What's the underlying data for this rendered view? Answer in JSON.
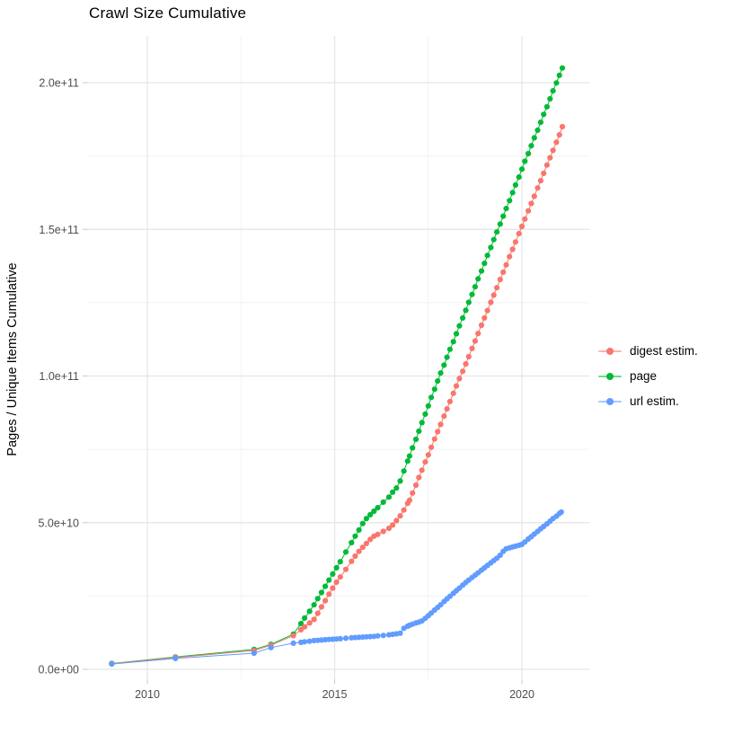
{
  "chart_data": {
    "type": "line",
    "marker": "point",
    "title": "Crawl Size Cumulative",
    "xlabel": "",
    "ylabel": "Pages / Unique Items Cumulative",
    "note": "series values are cumulative counts; values_e9 are in units of 1e9 (billions)",
    "grid": true,
    "legend_position": "right",
    "background": "#ffffff",
    "x_axis": {
      "range": [
        2008.4,
        2021.8
      ],
      "major_ticks": [
        2010,
        2015,
        2020
      ],
      "tick_labels": [
        "2010",
        "2015",
        "2020"
      ],
      "minor_ticks": [
        2012.5,
        2017.5
      ]
    },
    "y_axis": {
      "range_e9": [
        0,
        214
      ],
      "major_ticks_e9": [
        0,
        50,
        100,
        150,
        200
      ],
      "tick_labels": [
        "0.0e+00",
        "5.0e+10",
        "1.0e+11",
        "1.5e+11",
        "2.0e+11"
      ],
      "minor_ticks_e9": [
        25,
        75,
        125,
        175
      ]
    },
    "draw_order": [
      "page",
      "digest estim.",
      "url estim."
    ],
    "series": [
      {
        "name": "digest estim.",
        "color": "#F8766D",
        "x": [
          2009.05,
          2010.75,
          2012.85,
          2013.3,
          2013.9,
          2014.1,
          2014.2,
          2014.33,
          2014.45,
          2014.55,
          2014.65,
          2014.75,
          2014.85,
          2014.95,
          2015.05,
          2015.15,
          2015.3,
          2015.45,
          2015.55,
          2015.65,
          2015.75,
          2015.85,
          2015.95,
          2016.05,
          2016.15,
          2016.3,
          2016.45,
          2016.55,
          2016.65,
          2016.75,
          2016.85,
          2016.95,
          2017.0,
          2017.08,
          2017.17,
          2017.25,
          2017.33,
          2017.42,
          2017.5,
          2017.58,
          2017.67,
          2017.75,
          2017.83,
          2017.92,
          2018.0,
          2018.08,
          2018.17,
          2018.25,
          2018.33,
          2018.42,
          2018.5,
          2018.58,
          2018.67,
          2018.75,
          2018.83,
          2018.92,
          2019.0,
          2019.08,
          2019.17,
          2019.25,
          2019.33,
          2019.42,
          2019.5,
          2019.58,
          2019.67,
          2019.75,
          2019.83,
          2019.92,
          2020.0,
          2020.08,
          2020.17,
          2020.25,
          2020.33,
          2020.42,
          2020.5,
          2020.58,
          2020.67,
          2020.75,
          2020.83,
          2020.92,
          2021.0,
          2021.08
        ],
        "values_e9": [
          1.9,
          4.0,
          6.4,
          8.2,
          11.5,
          13.5,
          14.5,
          15.8,
          17.0,
          19.1,
          21.3,
          23.4,
          25.6,
          27.7,
          29.7,
          31.5,
          34.1,
          36.8,
          38.6,
          40.2,
          41.6,
          42.9,
          44.3,
          45.4,
          46.0,
          47.0,
          48.1,
          49.2,
          50.7,
          52.3,
          54.3,
          56.6,
          57.6,
          60.1,
          62.8,
          65.4,
          67.9,
          70.7,
          73.1,
          75.7,
          78.5,
          81.0,
          83.5,
          86.3,
          88.8,
          91.3,
          94.1,
          96.6,
          99.1,
          101.6,
          104.1,
          106.6,
          109.4,
          111.9,
          114.5,
          117.3,
          119.8,
          122.3,
          125.1,
          127.6,
          130.1,
          132.9,
          135.4,
          137.9,
          140.7,
          143.2,
          145.7,
          148.5,
          151.0,
          153.5,
          156.3,
          158.8,
          161.3,
          164.1,
          166.6,
          169.1,
          171.9,
          174.4,
          176.9,
          179.7,
          182.2,
          185.0
        ]
      },
      {
        "name": "page",
        "color": "#00BA38",
        "x": [
          2009.05,
          2010.75,
          2012.85,
          2013.3,
          2013.9,
          2014.1,
          2014.2,
          2014.33,
          2014.45,
          2014.55,
          2014.65,
          2014.75,
          2014.85,
          2014.95,
          2015.05,
          2015.15,
          2015.3,
          2015.45,
          2015.55,
          2015.65,
          2015.75,
          2015.85,
          2015.95,
          2016.05,
          2016.15,
          2016.3,
          2016.45,
          2016.55,
          2016.65,
          2016.75,
          2016.85,
          2016.95,
          2017.0,
          2017.08,
          2017.17,
          2017.25,
          2017.33,
          2017.42,
          2017.5,
          2017.58,
          2017.67,
          2017.75,
          2017.83,
          2017.92,
          2018.0,
          2018.08,
          2018.17,
          2018.25,
          2018.33,
          2018.42,
          2018.5,
          2018.58,
          2018.67,
          2018.75,
          2018.83,
          2018.92,
          2019.0,
          2019.08,
          2019.17,
          2019.25,
          2019.33,
          2019.42,
          2019.5,
          2019.58,
          2019.67,
          2019.75,
          2019.83,
          2019.92,
          2020.0,
          2020.08,
          2020.17,
          2020.25,
          2020.33,
          2020.42,
          2020.5,
          2020.58,
          2020.67,
          2020.75,
          2020.83,
          2020.92,
          2021.0,
          2021.08
        ],
        "values_e9": [
          2.0,
          4.2,
          6.8,
          8.5,
          12.0,
          15.6,
          17.5,
          19.8,
          22.0,
          24.1,
          26.2,
          28.3,
          30.4,
          32.5,
          34.6,
          36.7,
          40.0,
          43.2,
          45.4,
          47.5,
          49.7,
          51.4,
          52.7,
          53.9,
          55.1,
          57.0,
          58.7,
          60.4,
          61.8,
          64.2,
          67.6,
          71.0,
          72.7,
          75.5,
          78.4,
          81.2,
          84.1,
          87.0,
          89.8,
          92.7,
          95.5,
          98.3,
          101.0,
          103.7,
          106.4,
          109.1,
          111.7,
          114.4,
          117.1,
          119.8,
          122.4,
          125.1,
          127.8,
          130.4,
          133.1,
          135.8,
          138.4,
          141.1,
          143.8,
          146.5,
          149.1,
          151.8,
          154.5,
          157.1,
          159.8,
          162.5,
          165.1,
          167.8,
          170.5,
          173.2,
          175.8,
          178.5,
          181.2,
          183.8,
          186.5,
          189.2,
          191.8,
          194.5,
          197.2,
          199.9,
          202.5,
          205.0
        ]
      },
      {
        "name": "url estim.",
        "color": "#619CFF",
        "x": [
          2009.05,
          2010.75,
          2012.85,
          2013.3,
          2013.9,
          2014.1,
          2014.2,
          2014.33,
          2014.45,
          2014.55,
          2014.65,
          2014.75,
          2014.85,
          2014.95,
          2015.05,
          2015.15,
          2015.3,
          2015.45,
          2015.55,
          2015.65,
          2015.75,
          2015.85,
          2015.95,
          2016.05,
          2016.15,
          2016.3,
          2016.45,
          2016.55,
          2016.65,
          2016.75,
          2016.85,
          2016.95,
          2017.0,
          2017.08,
          2017.17,
          2017.25,
          2017.33,
          2017.42,
          2017.5,
          2017.58,
          2017.67,
          2017.75,
          2017.83,
          2017.92,
          2018.0,
          2018.08,
          2018.17,
          2018.25,
          2018.33,
          2018.42,
          2018.5,
          2018.58,
          2018.67,
          2018.75,
          2018.83,
          2018.92,
          2019.0,
          2019.08,
          2019.17,
          2019.25,
          2019.33,
          2019.42,
          2019.5,
          2019.58,
          2019.67,
          2019.75,
          2019.83,
          2019.92,
          2020.0,
          2020.08,
          2020.17,
          2020.25,
          2020.33,
          2020.42,
          2020.5,
          2020.58,
          2020.67,
          2020.75,
          2020.83,
          2020.92,
          2021.0,
          2021.05
        ],
        "values_e9": [
          1.8,
          3.7,
          5.5,
          7.4,
          8.9,
          9.2,
          9.4,
          9.6,
          9.8,
          9.9,
          10.0,
          10.1,
          10.2,
          10.25,
          10.35,
          10.45,
          10.6,
          10.75,
          10.85,
          10.9,
          11.0,
          11.1,
          11.15,
          11.25,
          11.4,
          11.55,
          11.75,
          11.9,
          12.1,
          12.3,
          14.0,
          14.7,
          15.0,
          15.4,
          15.8,
          16.1,
          16.5,
          17.4,
          18.3,
          19.2,
          20.2,
          21.1,
          22.0,
          23.1,
          24.0,
          24.9,
          25.9,
          26.8,
          27.7,
          28.7,
          29.6,
          30.4,
          31.3,
          32.1,
          32.9,
          33.8,
          34.6,
          35.4,
          36.3,
          37.1,
          37.9,
          38.9,
          40.2,
          41.1,
          41.4,
          41.7,
          42.0,
          42.3,
          42.6,
          43.4,
          44.4,
          45.2,
          46.1,
          47.0,
          47.9,
          48.7,
          49.6,
          50.5,
          51.4,
          52.2,
          53.1,
          53.6
        ]
      }
    ]
  },
  "legend": {
    "items": [
      {
        "label": "digest estim.",
        "color": "#F8766D"
      },
      {
        "label": "page",
        "color": "#00BA38"
      },
      {
        "label": "url estim.",
        "color": "#619CFF"
      }
    ]
  },
  "style": {
    "grid_major_color": "#E5E5E5",
    "grid_minor_color": "#F2F2F2",
    "tick_mark_color": "#C9C9C9",
    "tick_label_color": "#4d4d4d",
    "text_color": "#000000"
  }
}
